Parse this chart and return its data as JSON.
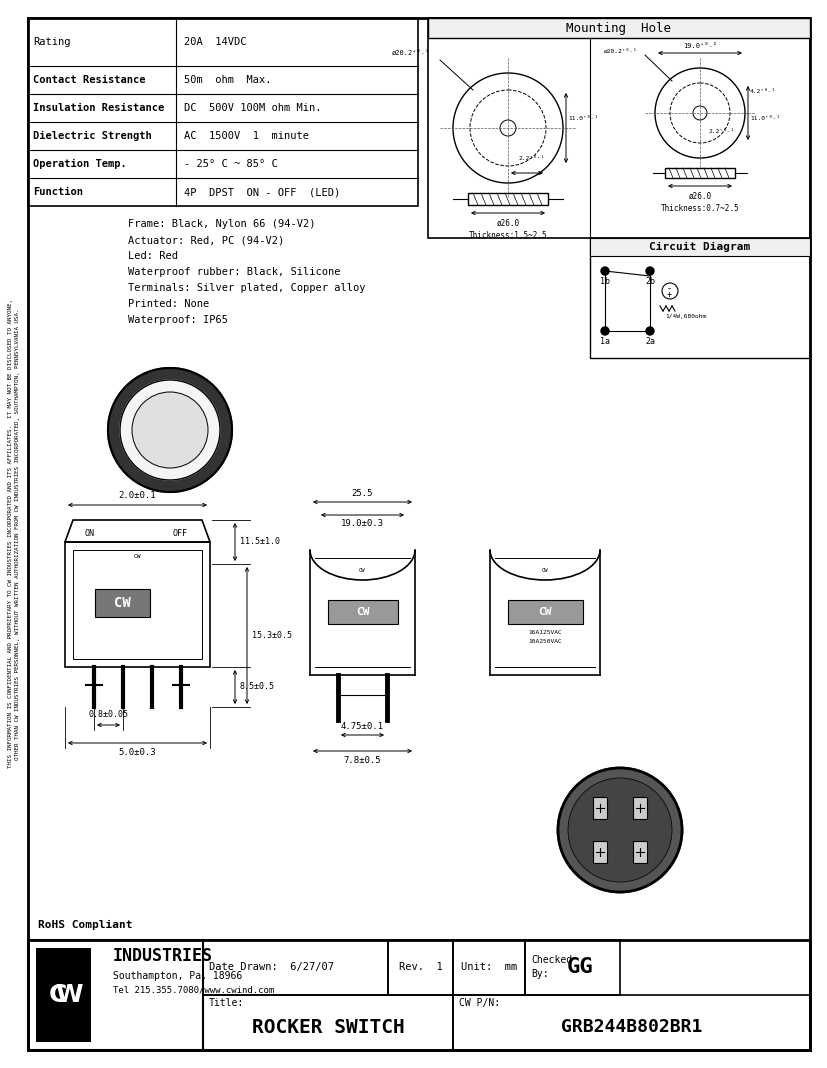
{
  "bg_color": "#ffffff",
  "specs": [
    [
      "Rating",
      "20A  14VDC",
      false
    ],
    [
      "Contact Resistance",
      "50m  ohm  Max.",
      true
    ],
    [
      "Insulation Resistance",
      "DC  500V 100M ohm Min.",
      true
    ],
    [
      "Dielectric Strength",
      "AC  1500V  1  minute",
      true
    ],
    [
      "Operation Temp.",
      "- 25° C ~ 85° C",
      true
    ],
    [
      "Function",
      "4P  DPST  ON - OFF  (LED)",
      true
    ]
  ],
  "materials": [
    "Frame: Black, Nylon 66 (94-V2)",
    "Actuator: Red, PC (94-V2)",
    "Led: Red",
    "Waterproof rubber: Black, Silicone",
    "Terminals: Silver plated, Copper alloy",
    "Printed: None",
    "Waterproof: IP65"
  ],
  "mounting_hole_title": "Mounting  Hole",
  "circuit_diagram_title": "Circuit Diagram",
  "rohs": "RoHS Compliant",
  "company": "INDUSTRIES",
  "address": "Southampton, Pa. 18966",
  "tel": "Tel 215.355.7080/www.cwind.com",
  "date_drawn": "6/27/07",
  "rev": "1",
  "unit": "mm",
  "checked_by": "GG",
  "title": "ROCKER SWITCH",
  "part_number": "GRB244B802BR1",
  "sidebar_line1": "THIS INFORMATION IS CONFIDENTIAL AND PROPRIETARY TO CW INDUSTRIES INCORPORATED AND ITS AFFILIATES.  IT MAY NOT BE DISCLOSED TO ANYONE,",
  "sidebar_line2": "OTHER THAN CW INDUSTRIES PERSONNEL, WITHOUT WRITTEN AUTHORIZATION FROM CW INDUSTRIES INCORPORATED, SOUTHAMPTON, PENNSYLVANIA USA."
}
